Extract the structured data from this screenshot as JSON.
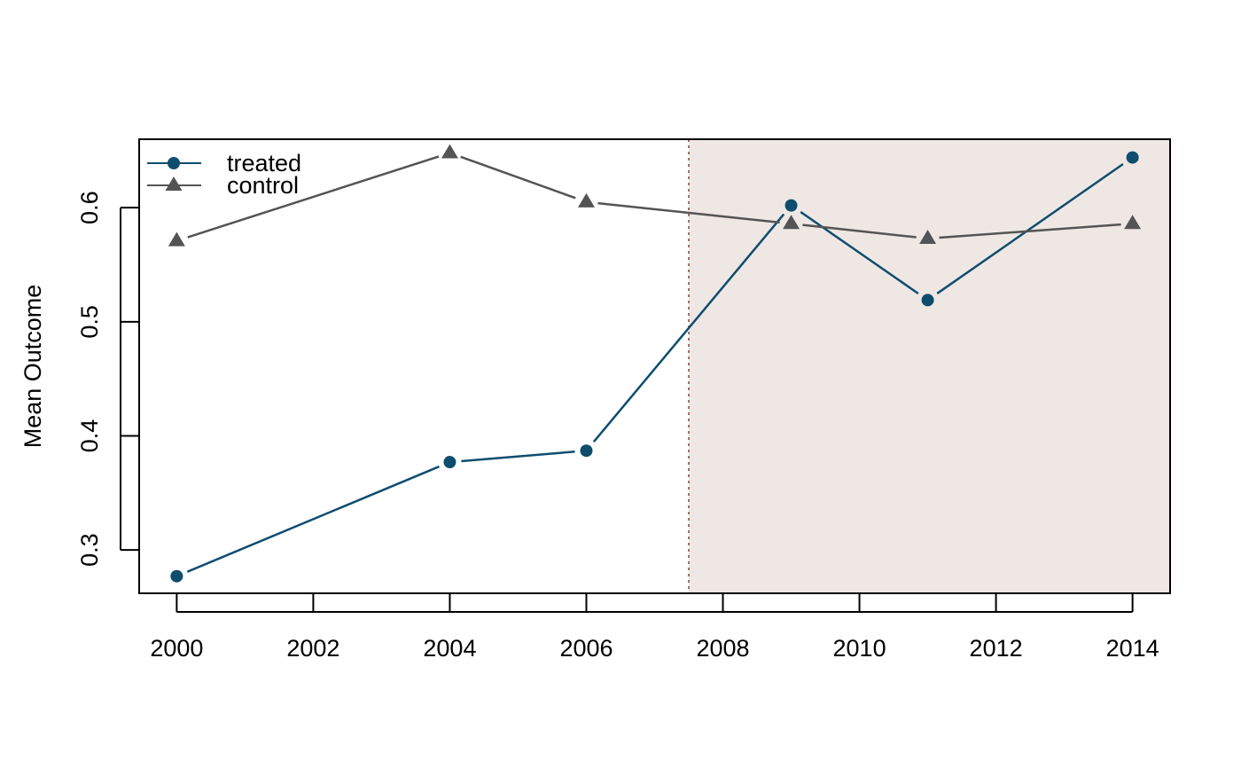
{
  "chart_data": {
    "type": "line",
    "title": "",
    "xlabel": "",
    "ylabel": "Mean Outcome",
    "x": [
      2000,
      2004,
      2006,
      2009,
      2011,
      2014
    ],
    "xlim": [
      1999.45,
      2014.55
    ],
    "ylim": [
      0.262,
      0.66
    ],
    "xticks": [
      2000,
      2002,
      2004,
      2006,
      2008,
      2010,
      2012,
      2014
    ],
    "yticks": [
      0.3,
      0.4,
      0.5,
      0.6
    ],
    "xtick_labels": [
      "2000",
      "2002",
      "2004",
      "2006",
      "2008",
      "2010",
      "2012",
      "2014"
    ],
    "ytick_labels": [
      "0.3",
      "0.4",
      "0.5",
      "0.6"
    ],
    "grid": false,
    "legend_position": "top-left",
    "treatment_start": 2007.5,
    "shaded_region": [
      2007.5,
      2014.55
    ],
    "series": [
      {
        "name": "treated",
        "values": [
          0.277,
          0.377,
          0.387,
          0.602,
          0.519,
          0.644
        ],
        "color": "#0e4d6e",
        "marker": "circle"
      },
      {
        "name": "control",
        "values": [
          0.571,
          0.648,
          0.605,
          0.586,
          0.573,
          0.586
        ],
        "color": "#545454",
        "marker": "triangle"
      }
    ],
    "colors": {
      "shade": "#efe7e4",
      "vline": "#a0706a"
    }
  }
}
